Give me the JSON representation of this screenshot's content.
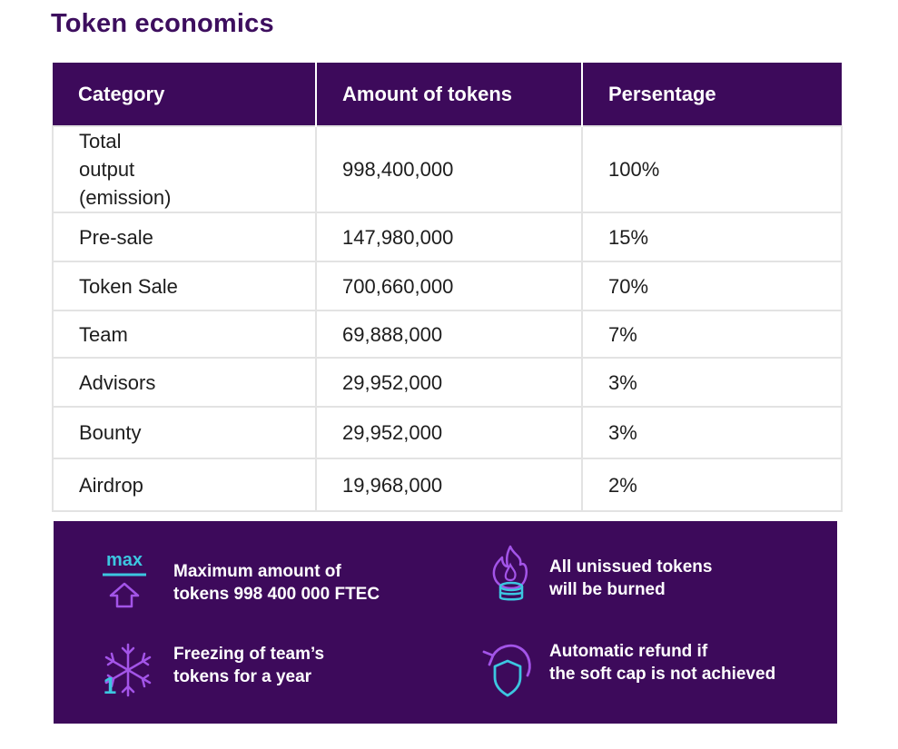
{
  "title": "Token economics",
  "table": {
    "headers": [
      "Category",
      "Amount of tokens",
      "Persentage"
    ],
    "rows": [
      {
        "category": "Total output (emission)",
        "amount": "998,400,000",
        "percentage": "100%"
      },
      {
        "category": "Pre-sale",
        "amount": "147,980,000",
        "percentage": "15%"
      },
      {
        "category": "Token Sale",
        "amount": "700,660,000",
        "percentage": "70%"
      },
      {
        "category": "Team",
        "amount": "69,888,000",
        "percentage": "7%"
      },
      {
        "category": "Advisors",
        "amount": "29,952,000",
        "percentage": "3%"
      },
      {
        "category": "Bounty",
        "amount": "29,952,000",
        "percentage": "3%"
      },
      {
        "category": "Airdrop",
        "amount": "19,968,000",
        "percentage": "2%"
      }
    ]
  },
  "features": [
    {
      "icon": "max-arrow-icon",
      "icon_text": "max",
      "line1": "Maximum amount of",
      "line2": "tokens 998 400 000 FTEC"
    },
    {
      "icon": "burning-coins-icon",
      "line1": "All unissued tokens",
      "line2": "will be burned"
    },
    {
      "icon": "snowflake-icon",
      "icon_text": "1",
      "line1": "Freezing of team’s",
      "line2": "tokens for a year"
    },
    {
      "icon": "refund-shield-icon",
      "line1": "Automatic refund if",
      "line2": "the soft cap is not achieved"
    }
  ],
  "colors": {
    "brand_purple": "#3d0a5b",
    "icon_cyan": "#3cc6e0",
    "icon_violet": "#a354e8"
  }
}
